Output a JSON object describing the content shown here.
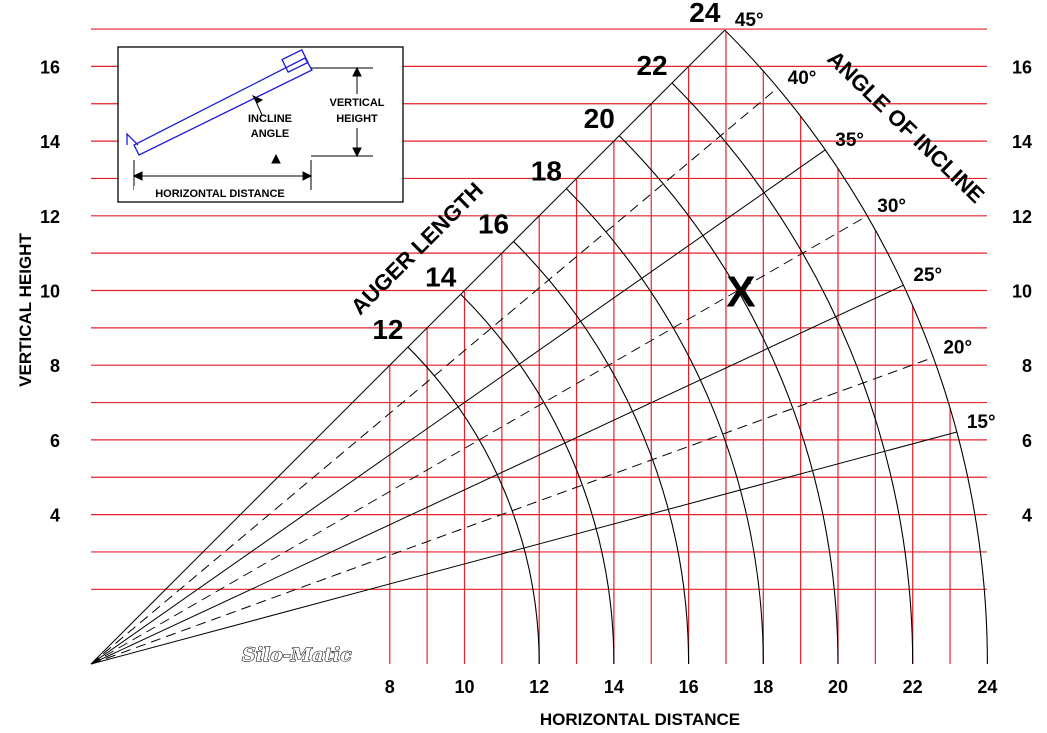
{
  "chart_data": {
    "type": "nomogram",
    "xlabel": "HORIZONTAL DISTANCE",
    "ylabel": "VERTICAL HEIGHT",
    "xlim": [
      0,
      24
    ],
    "ylim": [
      0,
      17
    ],
    "x_ticks": [
      "8",
      "10",
      "12",
      "14",
      "16",
      "18",
      "20",
      "22",
      "24"
    ],
    "y_ticks": [
      "4",
      "6",
      "8",
      "10",
      "12",
      "14",
      "16"
    ],
    "grid": true,
    "auger_length_title": "AUGER LENGTH",
    "auger_lengths": [
      "12",
      "14",
      "16",
      "18",
      "20",
      "22",
      "24"
    ],
    "angle_title": "ANGLE OF INCLINE",
    "angles": [
      "15°",
      "20°",
      "25°",
      "30°",
      "35°",
      "40°",
      "45°"
    ],
    "example_mark": {
      "label": "X",
      "x": 17.4,
      "y": 10.0
    },
    "brand": "Silo-Matic",
    "colors": {
      "grid": "#e8202a",
      "lines": "#000000",
      "inset_drawing": "#1b1bd6"
    }
  },
  "inset": {
    "incline_angle": [
      "INCLINE",
      "ANGLE"
    ],
    "vertical_height": [
      "VERTICAL",
      "HEIGHT"
    ],
    "horizontal_distance": "HORIZONTAL DISTANCE"
  }
}
